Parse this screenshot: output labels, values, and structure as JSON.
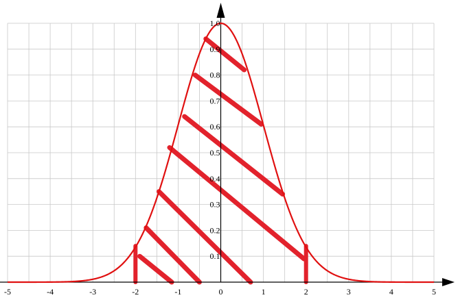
{
  "chart_data": {
    "type": "line",
    "title": "",
    "xlabel": "",
    "ylabel": "",
    "xlim": [
      -5,
      5
    ],
    "ylim": [
      0,
      1.0
    ],
    "x_ticks": [
      -5,
      -4,
      -3,
      -2,
      -1,
      0,
      1,
      2,
      3,
      4,
      5
    ],
    "x_tick_labels": [
      "-5",
      "-4",
      "-3",
      "-2",
      "-1",
      "0",
      "1",
      "2",
      "3",
      "4",
      "5"
    ],
    "y_ticks": [
      0.1,
      0.2,
      0.3,
      0.4,
      0.5,
      0.6,
      0.7,
      0.8,
      0.9,
      1.0
    ],
    "y_tick_labels": [
      "0.1",
      "0.2",
      "0.3",
      "0.4",
      "0.5",
      "0.6",
      "0.7",
      "0.8",
      "0.9",
      "1.0"
    ],
    "grid": true,
    "series": [
      {
        "curve": "exp(-x^2/2)",
        "color": "#e01010",
        "x": [
          -5,
          -4.5,
          -4,
          -3.5,
          -3,
          -2.5,
          -2,
          -1.5,
          -1,
          -0.5,
          0,
          0.5,
          1,
          1.5,
          2,
          2.5,
          3,
          3.5,
          4,
          4.5,
          5
        ],
        "y": [
          0.0,
          0.0,
          0.0003,
          0.0022,
          0.0111,
          0.0439,
          0.1353,
          0.3247,
          0.6065,
          0.8825,
          1.0,
          0.8825,
          0.6065,
          0.3247,
          0.1353,
          0.0439,
          0.0111,
          0.0022,
          0.0003,
          0.0,
          0.0
        ]
      }
    ],
    "shaded_region": {
      "x_from": -2,
      "x_to": 2,
      "style": "hatched",
      "color": "#e01010"
    },
    "hatch_strokes": [
      {
        "x1": -1.9,
        "y1": 0.1,
        "x2": -1.15,
        "y2": 0.0
      },
      {
        "x1": -1.75,
        "y1": 0.21,
        "x2": -0.5,
        "y2": 0.0
      },
      {
        "x1": -1.45,
        "y1": 0.35,
        "x2": 0.7,
        "y2": 0.0
      },
      {
        "x1": -1.2,
        "y1": 0.52,
        "x2": 1.95,
        "y2": 0.09
      },
      {
        "x1": -0.85,
        "y1": 0.64,
        "x2": 1.45,
        "y2": 0.34
      },
      {
        "x1": -0.6,
        "y1": 0.8,
        "x2": 0.95,
        "y2": 0.61
      },
      {
        "x1": -0.35,
        "y1": 0.94,
        "x2": 0.55,
        "y2": 0.82
      }
    ],
    "boundary_strokes": [
      {
        "x": -2,
        "y_from": 0.0,
        "y_to": 0.14
      },
      {
        "x": 2,
        "y_from": 0.0,
        "y_to": 0.14
      }
    ],
    "colors": {
      "curve": "#e01010",
      "hatch": "#e2222c",
      "grid": "#c8c8c8",
      "axis": "#000000",
      "background": "#ffffff"
    }
  }
}
